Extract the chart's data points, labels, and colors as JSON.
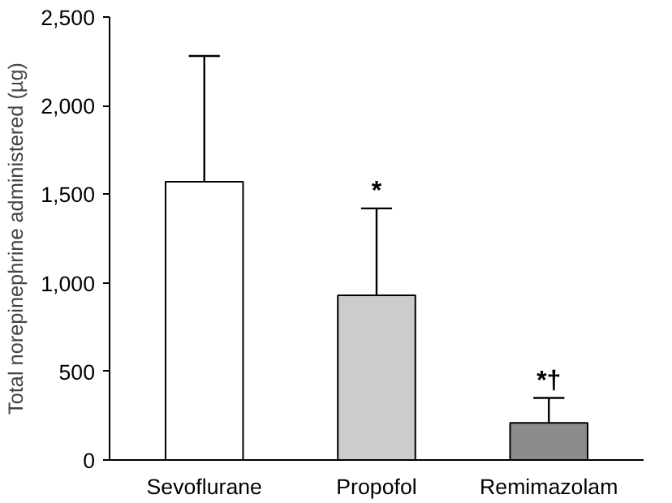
{
  "chart_data": {
    "type": "bar",
    "ylabel": "Total norepinephrine administered (µg)",
    "categories": [
      "Sevoflurane",
      "Propofol",
      "Remimazolam"
    ],
    "values": [
      1570,
      930,
      210
    ],
    "colors": [
      "#ffffff",
      "#cccccc",
      "#8c8c8c"
    ],
    "errors": [
      [
        1570,
        2280
      ],
      [
        930,
        1420
      ],
      [
        210,
        350
      ]
    ],
    "ylim": [
      0,
      2500
    ],
    "yticks": [
      0,
      500,
      {
        "value": 1000,
        "label": "1,000"
      },
      {
        "value": 1500,
        "label": "1,500"
      },
      {
        "value": 2000,
        "label": "2,000"
      },
      {
        "value": 2500,
        "label": "2,500"
      }
    ],
    "annotations": [
      {
        "text": "*",
        "x": "Propofol",
        "y": 1420
      },
      {
        "text": "*†",
        "x": "Remimazolam",
        "y": 350
      }
    ],
    "grid": false
  }
}
